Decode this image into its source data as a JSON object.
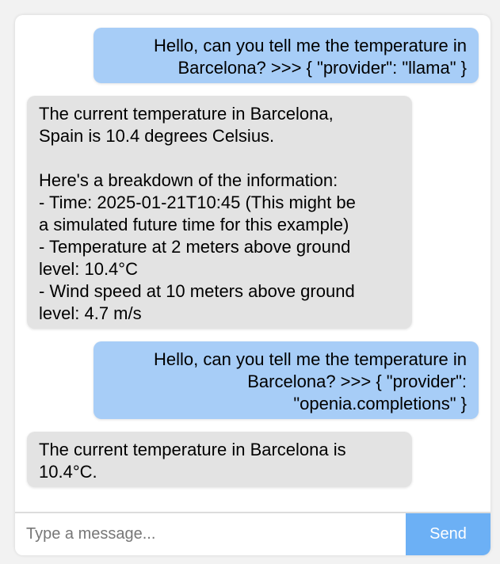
{
  "chat": {
    "messages": [
      {
        "role": "user",
        "text": "Hello, can you tell me the temperature in\nBarcelona? >>> { \"provider\": \"llama\" }"
      },
      {
        "role": "assistant",
        "text": "The current temperature in Barcelona,\nSpain is 10.4 degrees Celsius.\n\nHere's a breakdown of the information:\n- Time: 2025-01-21T10:45 (This might be\na simulated future time for this example)\n- Temperature at 2 meters above ground\nlevel: 10.4°C\n- Wind speed at 10 meters above ground\nlevel: 4.7 m/s"
      },
      {
        "role": "user",
        "text": "Hello, can you tell me the temperature in\nBarcelona? >>> { \"provider\":\n\"openia.completions\" }"
      },
      {
        "role": "assistant",
        "text": "The current temperature in Barcelona is\n10.4°C."
      }
    ]
  },
  "composer": {
    "placeholder": "Type a message...",
    "value": "",
    "send_label": "Send"
  },
  "colors": {
    "user_bubble": "#a7cdf7",
    "assistant_bubble": "#e3e3e3",
    "send_button": "#6cb0f5"
  }
}
